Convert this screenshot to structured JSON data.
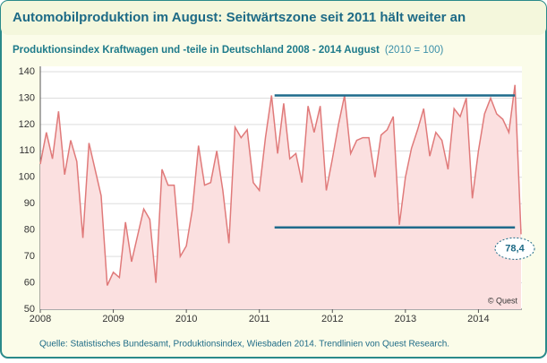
{
  "chart_data": {
    "type": "area",
    "title": "Automobilproduktion im August:  Seitwärtszone seit 2011 hält weiter an",
    "subtitle": "Produktionsindex Kraftwagen und -teile in Deutschland 2008 - 2014 August",
    "subtitle_note": "(2010 = 100)",
    "categories": [
      "2008",
      null,
      null,
      null,
      null,
      null,
      null,
      null,
      null,
      null,
      null,
      null,
      "2009",
      null,
      null,
      null,
      null,
      null,
      null,
      null,
      null,
      null,
      null,
      null,
      "2010",
      null,
      null,
      null,
      null,
      null,
      null,
      null,
      null,
      null,
      null,
      null,
      "2011",
      null,
      null,
      null,
      null,
      null,
      null,
      null,
      null,
      null,
      null,
      null,
      "2012",
      null,
      null,
      null,
      null,
      null,
      null,
      null,
      null,
      null,
      null,
      null,
      "2013",
      null,
      null,
      null,
      null,
      null,
      null,
      null,
      null,
      null,
      null,
      null,
      "2014",
      null,
      null,
      null,
      null,
      null,
      null,
      null
    ],
    "values": [
      105,
      117,
      107,
      125,
      101,
      114,
      106,
      77,
      113,
      103,
      93,
      59,
      64,
      62,
      83,
      68,
      78,
      88,
      84,
      60,
      103,
      97,
      97,
      70,
      74,
      88,
      112,
      97,
      98,
      110,
      95,
      75,
      119,
      115,
      118,
      98,
      95,
      115,
      131,
      109,
      128,
      107,
      109,
      98,
      127,
      117,
      127,
      95,
      107,
      120,
      131,
      109,
      114,
      115,
      115,
      100,
      116,
      118,
      123,
      82,
      100,
      111,
      118,
      126,
      108,
      117,
      114,
      103,
      126,
      123,
      130,
      92,
      110,
      124,
      130,
      124,
      122,
      117,
      135,
      78.4
    ],
    "color": "#e07a7a",
    "fill": "#fbe0e0",
    "ylim": [
      50,
      140
    ],
    "yticks": [
      50,
      60,
      70,
      80,
      90,
      100,
      110,
      120,
      130,
      140
    ],
    "grid": true,
    "trendlines": [
      {
        "value": 131,
        "color": "#1f6b8c"
      },
      {
        "value": 81,
        "color": "#1f6b8c"
      }
    ],
    "annotation": "78,4",
    "copyright": "© Quest",
    "source": "Quelle: Statistisches Bundesamt, Produktionsindex, Wiesbaden 2014. Trendlinien von Quest Research."
  }
}
